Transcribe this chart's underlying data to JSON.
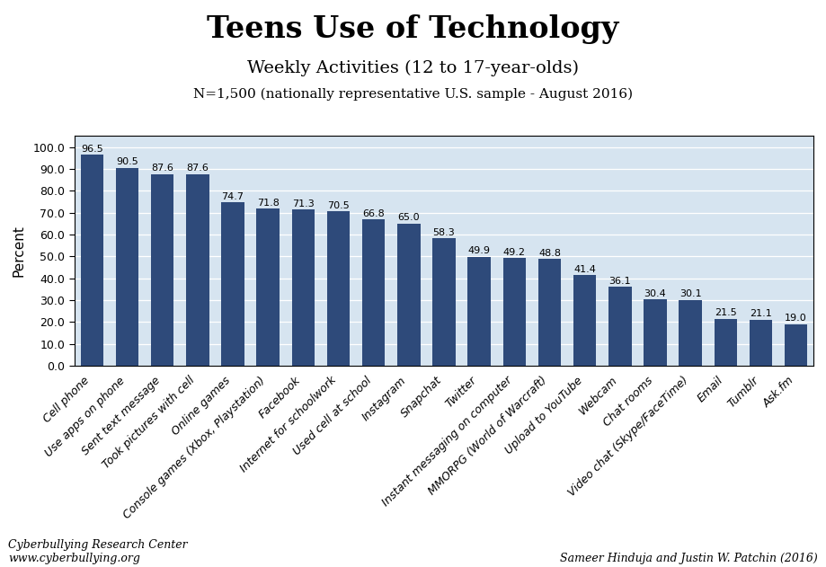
{
  "title": "Teens Use of Technology",
  "subtitle": "Weekly Activities (12 to 17-year-olds)",
  "subtitle2": "N=1,500 (nationally representative U.S. sample - August 2016)",
  "ylabel": "Percent",
  "categories": [
    "Cell phone",
    "Use apps on phone",
    "Sent text message",
    "Took pictures with cell",
    "Online games",
    "Console games (Xbox, Playstation)",
    "Facebook",
    "Internet for schoolwork",
    "Used cell at school",
    "Instagram",
    "Snapchat",
    "Twitter",
    "Instant messaging on computer",
    "MMORPG (World of Warcraft)",
    "Upload to YouTube",
    "Webcam",
    "Chat rooms",
    "Video chat (Skype/FaceTime)",
    "Email",
    "Tumblr",
    "Ask.fm"
  ],
  "values": [
    96.5,
    90.5,
    87.6,
    87.6,
    74.7,
    71.8,
    71.3,
    70.5,
    66.8,
    65.0,
    58.3,
    49.9,
    49.2,
    48.8,
    41.4,
    36.1,
    30.4,
    30.1,
    21.5,
    21.1,
    19.0
  ],
  "bar_color": "#2E4A7A",
  "bg_color": "#D6E4F0",
  "fig_bg_color": "#FFFFFF",
  "ylim": [
    0,
    105
  ],
  "yticks": [
    0.0,
    10.0,
    20.0,
    30.0,
    40.0,
    50.0,
    60.0,
    70.0,
    80.0,
    90.0,
    100.0
  ],
  "footer_left": "Cyberbullying Research Center\nwww.cyberbullying.org",
  "footer_right": "Sameer Hinduja and Justin W. Patchin (2016)",
  "title_fontsize": 24,
  "subtitle_fontsize": 14,
  "subtitle2_fontsize": 11,
  "ylabel_fontsize": 11,
  "bar_label_fontsize": 8,
  "tick_label_fontsize": 9,
  "ytick_label_fontsize": 9,
  "footer_fontsize": 9,
  "bar_width": 0.65
}
